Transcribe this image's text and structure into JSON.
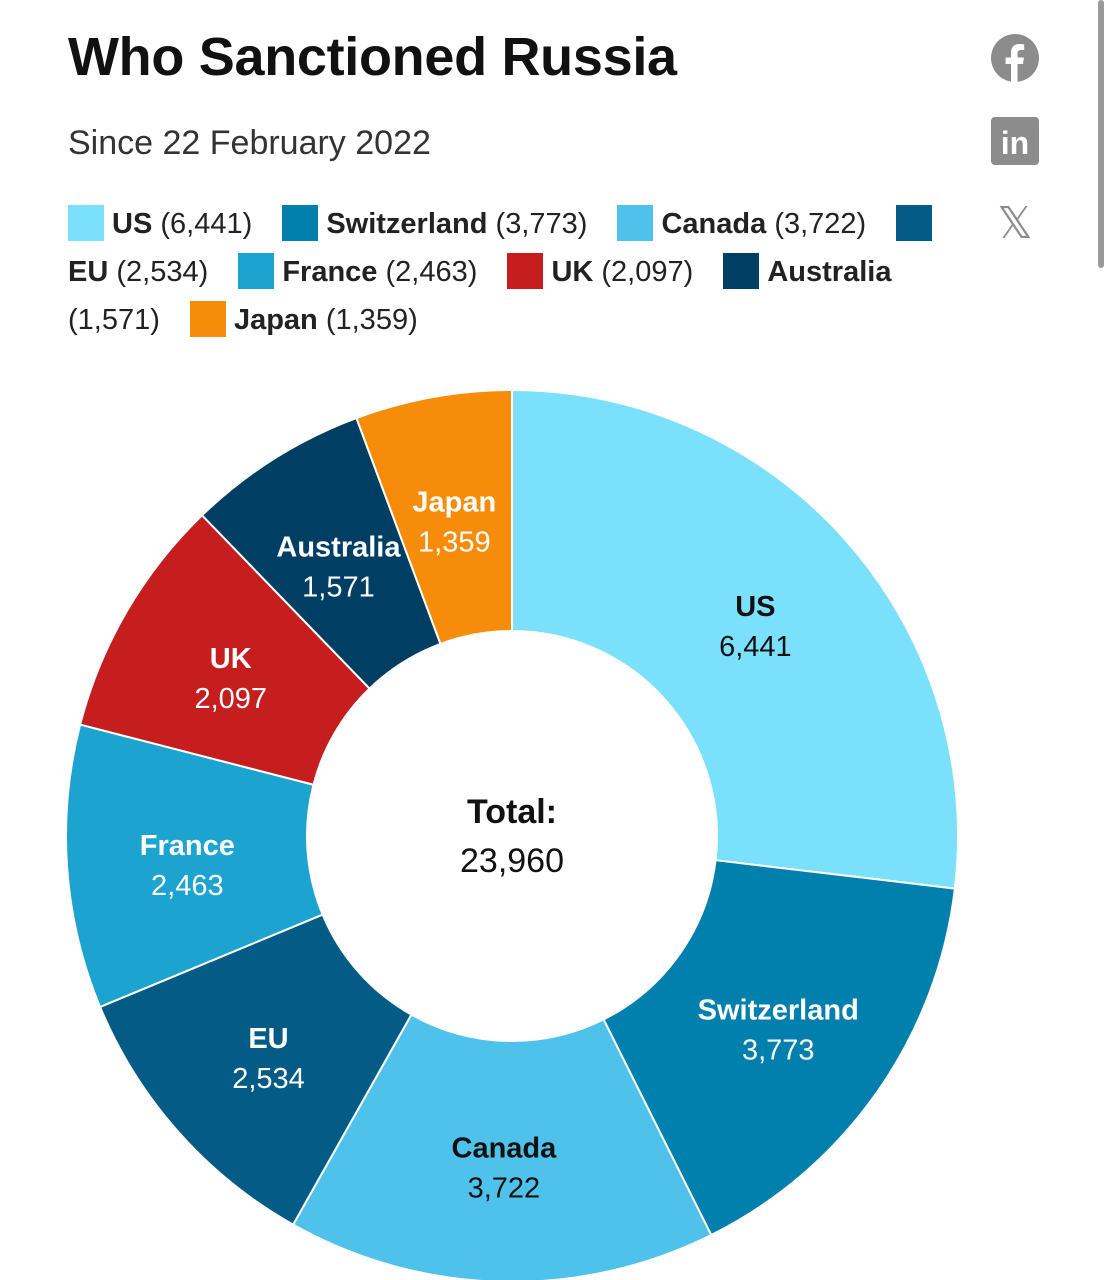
{
  "title": "Who Sanctioned Russia",
  "subtitle": "Since 22 February 2022",
  "share": {
    "facebook": {
      "icon": "facebook-icon"
    },
    "linkedin": {
      "icon": "linkedin-icon",
      "text": "in"
    },
    "x": {
      "icon": "x-icon",
      "text": "𝕏"
    }
  },
  "chart_data": {
    "type": "pie",
    "donut": true,
    "center_label": "Total:",
    "center_value": "23,960",
    "total": 23960,
    "legend_placement": "top",
    "categories": [
      "US",
      "Switzerland",
      "Canada",
      "EU",
      "France",
      "UK",
      "Australia",
      "Japan"
    ],
    "values": [
      6441,
      3773,
      3722,
      2534,
      2463,
      2097,
      1571,
      1359
    ],
    "value_labels": [
      "6,441",
      "3,773",
      "3,722",
      "2,534",
      "2,463",
      "2,097",
      "1,571",
      "1,359"
    ],
    "legend_labels": [
      "(6,441)",
      "(3,773)",
      "(3,722)",
      "(2,534)",
      "(2,463)",
      "(2,097)",
      "(1,571)",
      "(1,359)"
    ],
    "colors": [
      "#7ae0fc",
      "#0280ad",
      "#4fc2ec",
      "#045b86",
      "#1ca3d0",
      "#c61d1f",
      "#003e63",
      "#f68c0a"
    ],
    "label_colors": [
      "#111111",
      "#ffffff",
      "#111111",
      "#ffffff",
      "#ffffff",
      "#ffffff",
      "#ffffff",
      "#ffffff"
    ]
  }
}
